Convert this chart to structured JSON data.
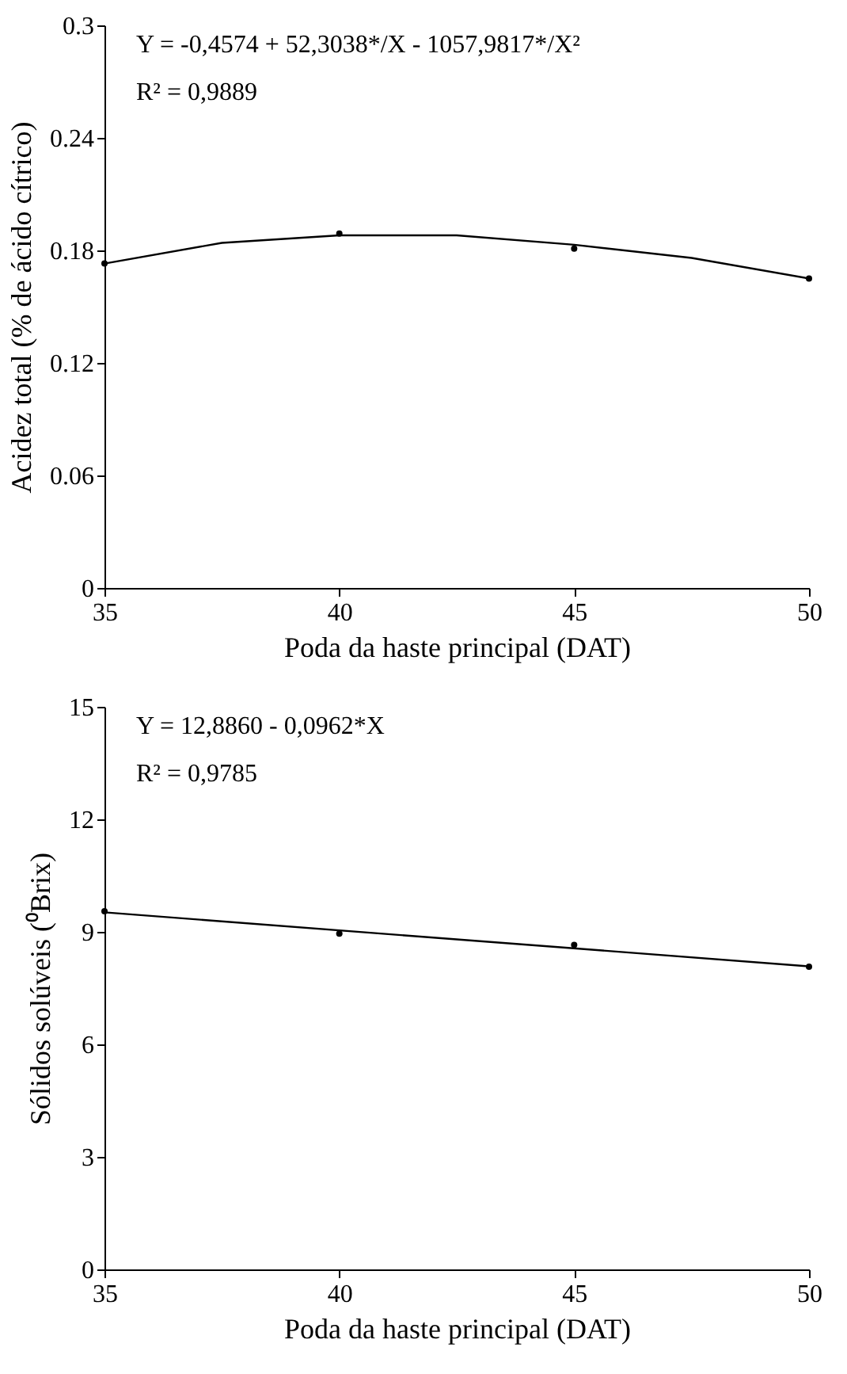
{
  "chart_data": [
    {
      "type": "scatter",
      "xlabel": "Poda da haste principal (DAT)",
      "ylabel": "Acidez total (% de ácido cítrico)",
      "annotations": [
        "Y = -0,4574 + 52,3038*/X - 1057,9817*/X²",
        "R² = 0,9889"
      ],
      "xlim": [
        35,
        50
      ],
      "xticks": [
        35,
        40,
        45,
        50
      ],
      "ylim": [
        0,
        0.3
      ],
      "yticks": [
        0,
        0.06,
        0.12,
        0.18,
        0.24,
        0.3
      ],
      "grid": false,
      "series": [
        {
          "type": "scatter",
          "color": "#000000",
          "marker": "circle",
          "x": [
            35,
            40,
            45,
            50
          ],
          "values": [
            0.173,
            0.189,
            0.181,
            0.165
          ]
        },
        {
          "type": "line",
          "color": "#000000",
          "line_style": "solid",
          "x": [
            35,
            37.5,
            40,
            42.5,
            45,
            47.5,
            50
          ],
          "values": [
            0.173,
            0.184,
            0.188,
            0.188,
            0.183,
            0.176,
            0.165
          ]
        }
      ]
    },
    {
      "type": "scatter",
      "xlabel": "Poda da haste principal (DAT)",
      "ylabel": "Sólidos solúveis (⁰Brix)",
      "annotations": [
        "Y = 12,8860 - 0,0962*X",
        "R² = 0,9785"
      ],
      "xlim": [
        35,
        50
      ],
      "xticks": [
        35,
        40,
        45,
        50
      ],
      "ylim": [
        0,
        15
      ],
      "yticks": [
        0,
        3,
        6,
        9,
        12,
        15
      ],
      "grid": false,
      "series": [
        {
          "type": "scatter",
          "color": "#000000",
          "marker": "circle",
          "x": [
            35,
            40,
            45,
            50
          ],
          "values": [
            9.55,
            8.95,
            8.65,
            8.07
          ]
        },
        {
          "type": "line",
          "color": "#000000",
          "line_style": "solid",
          "x": [
            35,
            50
          ],
          "values": [
            9.52,
            8.08
          ]
        }
      ]
    }
  ]
}
